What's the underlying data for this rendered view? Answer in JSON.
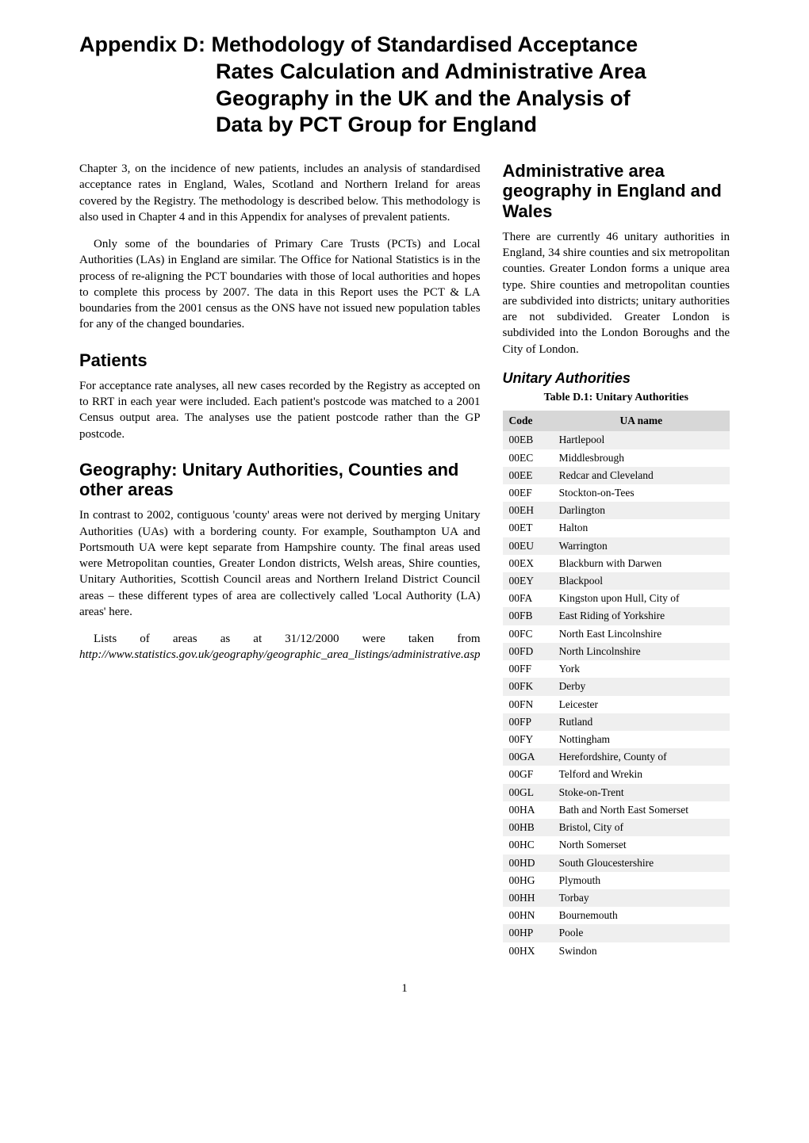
{
  "title_line1": "Appendix D:",
  "title_rest_line1": "Methodology of Standardised Acceptance",
  "title_line2": "Rates Calculation and Administrative Area",
  "title_line3": "Geography in the UK and the Analysis of",
  "title_line4": "Data by PCT Group for England",
  "left": {
    "p1": "Chapter 3, on the incidence of new patients, includes an analysis of standardised acceptance rates in England, Wales, Scotland and Northern Ireland for areas covered by the Registry. The methodology is described below. This methodology is also used in Chapter 4 and in this Appendix for analyses of prevalent patients.",
    "p2": "Only some of the boundaries of Primary Care Trusts (PCTs) and Local Authorities (LAs) in England are similar. The Office for National Statistics is in the process of re-aligning the PCT boundaries with those of local authorities and hopes to complete this process by 2007. The data in this Report uses the PCT & LA boundaries from the 2001 census as the ONS have not issued new population tables for any of the changed boundaries.",
    "patients_h": "Patients",
    "patients_p": "For acceptance rate analyses, all new cases recorded by the Registry as accepted on to RRT in each year were included. Each patient's postcode was matched to a 2001 Census output area. The analyses use the patient postcode rather than the GP postcode.",
    "geo_h": "Geography: Unitary Authorities, Counties and other areas",
    "geo_p1": "In contrast to 2002, contiguous 'county' areas were not derived by merging Unitary Authorities (UAs) with a bordering county. For example, Southampton UA and Portsmouth UA were kept separate from Hampshire county. The final areas used were Metropolitan counties, Greater London districts, Welsh areas, Shire counties, Unitary Authorities, Scottish Council areas and Northern Ireland District Council areas – these different types of area are collectively called 'Local Authority (LA) areas' here.",
    "geo_p2_a": "Lists of areas as at 31/12/2000 were taken from ",
    "geo_p2_b": "http://www.statistics.gov.uk/geography/geographic_area_listings/administrative.asp"
  },
  "right": {
    "admin_h": "Administrative area geography in England and Wales",
    "admin_p": "There are currently 46 unitary authorities in England, 34 shire counties and six metropolitan counties. Greater London forms a unique area type. Shire counties and metropolitan counties are subdivided into districts; unitary authorities are not subdivided. Greater London is subdivided into the London Boroughs and the City of London.",
    "ua_h": "Unitary Authorities",
    "table_caption": "Table D.1: Unitary Authorities",
    "table": {
      "header_code": "Code",
      "header_name": "UA name",
      "header_bg": "#d7d7d7",
      "row_alt_bg": "#efefef",
      "row_bg": "#ffffff",
      "rows": [
        {
          "code": "00EB",
          "name": "Hartlepool"
        },
        {
          "code": "00EC",
          "name": "Middlesbrough"
        },
        {
          "code": "00EE",
          "name": "Redcar and Cleveland"
        },
        {
          "code": "00EF",
          "name": "Stockton-on-Tees"
        },
        {
          "code": "00EH",
          "name": "Darlington"
        },
        {
          "code": "00ET",
          "name": "Halton"
        },
        {
          "code": "00EU",
          "name": "Warrington"
        },
        {
          "code": "00EX",
          "name": "Blackburn with Darwen"
        },
        {
          "code": "00EY",
          "name": "Blackpool"
        },
        {
          "code": "00FA",
          "name": "Kingston upon Hull, City of"
        },
        {
          "code": "00FB",
          "name": "East Riding of Yorkshire"
        },
        {
          "code": "00FC",
          "name": "North East Lincolnshire"
        },
        {
          "code": "00FD",
          "name": "North Lincolnshire"
        },
        {
          "code": "00FF",
          "name": "York"
        },
        {
          "code": "00FK",
          "name": "Derby"
        },
        {
          "code": "00FN",
          "name": "Leicester"
        },
        {
          "code": "00FP",
          "name": "Rutland"
        },
        {
          "code": "00FY",
          "name": "Nottingham"
        },
        {
          "code": "00GA",
          "name": "Herefordshire, County of"
        },
        {
          "code": "00GF",
          "name": "Telford and Wrekin"
        },
        {
          "code": "00GL",
          "name": "Stoke-on-Trent"
        },
        {
          "code": "00HA",
          "name": "Bath and North East Somerset"
        },
        {
          "code": "00HB",
          "name": "Bristol, City of"
        },
        {
          "code": "00HC",
          "name": "North Somerset"
        },
        {
          "code": "00HD",
          "name": "South Gloucestershire"
        },
        {
          "code": "00HG",
          "name": "Plymouth"
        },
        {
          "code": "00HH",
          "name": "Torbay"
        },
        {
          "code": "00HN",
          "name": "Bournemouth"
        },
        {
          "code": "00HP",
          "name": "Poole"
        },
        {
          "code": "00HX",
          "name": "Swindon"
        }
      ]
    }
  },
  "page_number": "1"
}
